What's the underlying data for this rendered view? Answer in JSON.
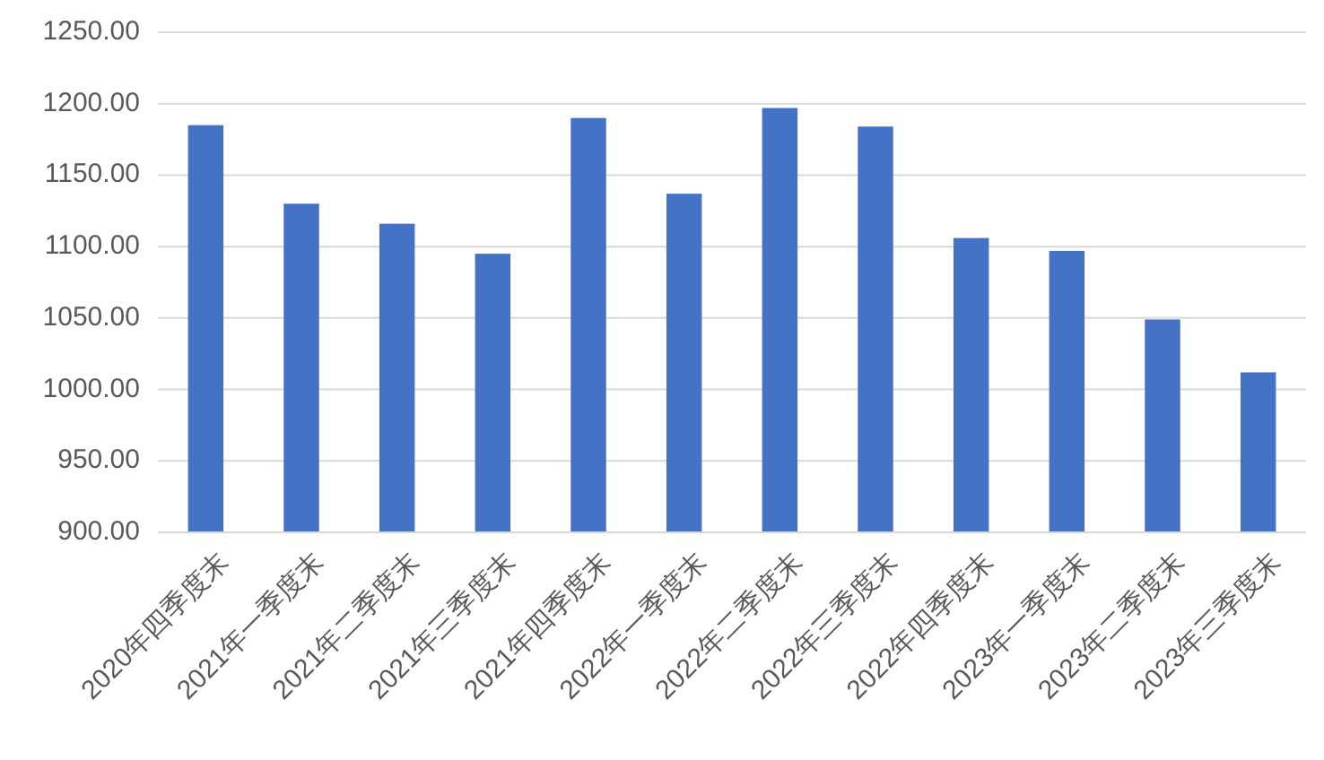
{
  "chart_data": {
    "type": "bar",
    "categories": [
      "2020年四季度末",
      "2021年一季度末",
      "2021年二季度末",
      "2021年三季度末",
      "2021年四季度末",
      "2022年一季度末",
      "2022年二季度末",
      "2022年三季度末",
      "2022年四季度末",
      "2023年一季度末",
      "2023年二季度末",
      "2023年三季度末"
    ],
    "values": [
      1185,
      1130,
      1116,
      1095,
      1190,
      1137,
      1197,
      1184,
      1106,
      1097,
      1049,
      1012
    ],
    "color": "#4472c4",
    "ylim": [
      900,
      1250
    ],
    "yticks": [
      {
        "value": 900,
        "label": "900.00"
      },
      {
        "value": 950,
        "label": "950.00"
      },
      {
        "value": 1000,
        "label": "1000.00"
      },
      {
        "value": 1050,
        "label": "1050.00"
      },
      {
        "value": 1100,
        "label": "1100.00"
      },
      {
        "value": 1150,
        "label": "1150.00"
      },
      {
        "value": 1200,
        "label": "1200.00"
      },
      {
        "value": 1250,
        "label": "1250.00"
      }
    ],
    "grid": "y"
  }
}
